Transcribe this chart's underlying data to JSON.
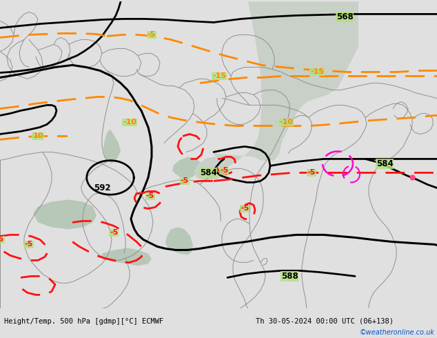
{
  "title_left": "Height/Temp. 500 hPa [gdmp][°C] ECMWF",
  "title_right": "Th 30-05-2024 00:00 UTC (06+138)",
  "watermark": "©weatheronline.co.uk",
  "bg_land": "#b5e080",
  "bg_sea": "#d0d8d0",
  "bg_water_gray": "#c0c8c0",
  "border_color": "#909090",
  "height_color": "#000000",
  "temp_orange_color": "#ff8800",
  "temp_red_color": "#ff1111",
  "temp_magenta_color": "#ff00cc",
  "bottom_bg": "#e0e0e0",
  "text_color": "#000000",
  "watermark_color": "#0055cc",
  "fig_w": 6.34,
  "fig_h": 4.9,
  "dpi": 100
}
